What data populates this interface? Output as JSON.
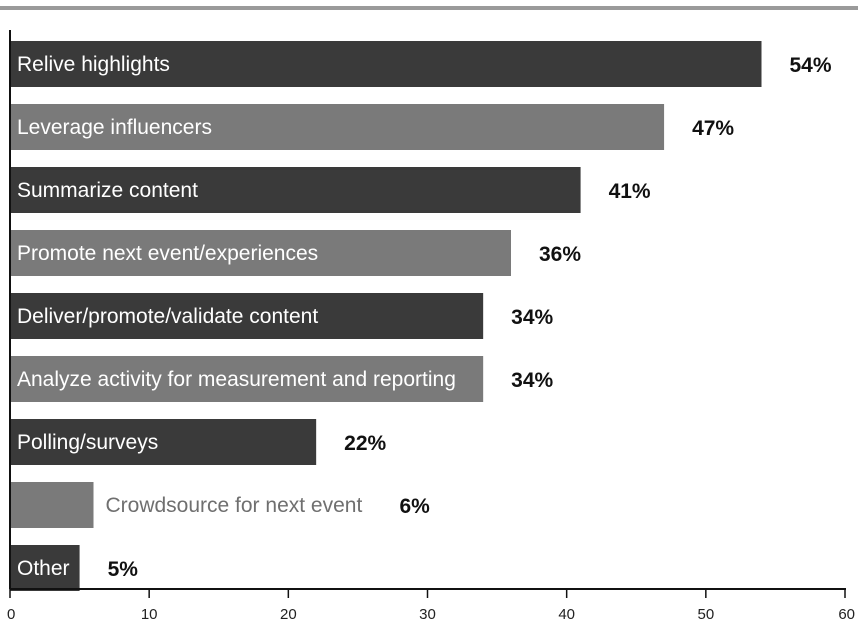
{
  "chart_data": {
    "type": "bar",
    "orientation": "horizontal",
    "categories": [
      "Relive highlights",
      "Leverage influencers",
      "Summarize content",
      "Promote next event/experiences",
      "Deliver/promote/validate content",
      "Analyze activity for measurement and reporting",
      "Polling/surveys",
      "Crowdsource for next event",
      "Other"
    ],
    "values": [
      54,
      47,
      41,
      36,
      34,
      34,
      22,
      6,
      5
    ],
    "value_labels": [
      "54%",
      "47%",
      "41%",
      "36%",
      "34%",
      "34%",
      "22%",
      "6%",
      "5%"
    ],
    "label_outside": [
      false,
      false,
      false,
      false,
      false,
      false,
      false,
      true,
      false
    ],
    "bar_shades": [
      "dark",
      "light",
      "dark",
      "light",
      "dark",
      "light",
      "dark",
      "light",
      "dark"
    ],
    "xlim": [
      0,
      60
    ],
    "xticks": [
      0,
      10,
      20,
      30,
      40,
      50,
      60
    ],
    "title": "",
    "xlabel": "",
    "ylabel": "",
    "grid": false,
    "colors": {
      "dark": "#3a3a3a",
      "light": "#7a7a7a",
      "axis": "#111111",
      "rule": "#9a9a9a"
    }
  }
}
